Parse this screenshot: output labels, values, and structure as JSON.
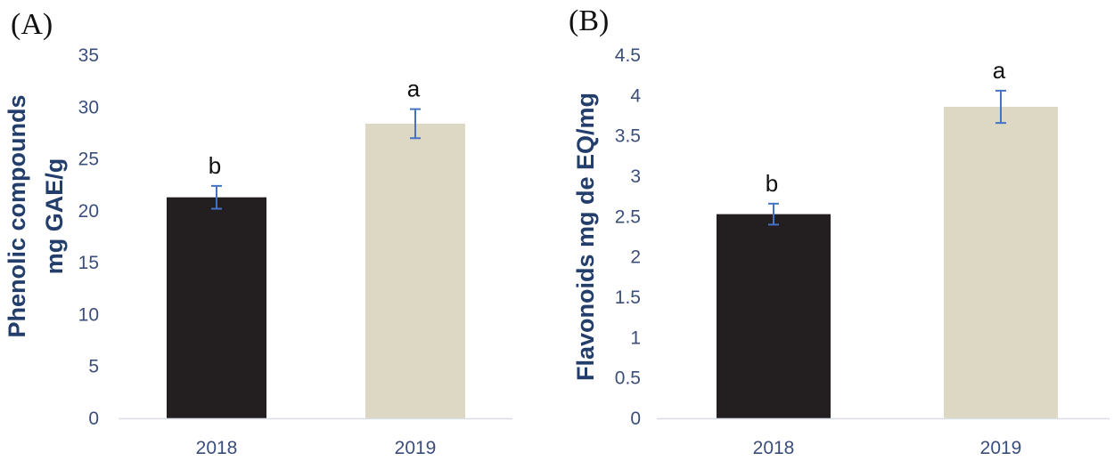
{
  "chart_data": [
    {
      "type": "bar",
      "panel_label": "(A)",
      "categories": [
        "2018",
        "2019"
      ],
      "values": [
        21.3,
        28.4
      ],
      "errors": [
        1.1,
        1.4
      ],
      "significance": [
        "b",
        "a"
      ],
      "ylabel_lines": [
        "Phenolic compounds",
        "mg GAE/g"
      ],
      "xlabel": "",
      "ylim": [
        0,
        35
      ],
      "yticks": [
        0,
        5,
        10,
        15,
        20,
        25,
        30,
        35
      ],
      "ytick_labels": [
        "0",
        "5",
        "10",
        "15",
        "20",
        "25",
        "30",
        "35"
      ],
      "bar_colors": [
        "#231f20",
        "#ddd8c4"
      ],
      "error_color": "#4472c4",
      "grid": false
    },
    {
      "type": "bar",
      "panel_label": "(B)",
      "categories": [
        "2018",
        "2019"
      ],
      "values": [
        2.53,
        3.86
      ],
      "errors": [
        0.13,
        0.2
      ],
      "significance": [
        "b",
        "a"
      ],
      "ylabel_lines": [
        "Flavonoids mg de EQ/mg"
      ],
      "xlabel": "",
      "ylim": [
        0,
        4.5
      ],
      "yticks": [
        0,
        0.5,
        1,
        1.5,
        2,
        2.5,
        3,
        3.5,
        4,
        4.5
      ],
      "ytick_labels": [
        "0",
        "0.5",
        "1",
        "1.5",
        "2",
        "2.5",
        "3",
        "3.5",
        "4",
        "4.5"
      ],
      "bar_colors": [
        "#231f20",
        "#ddd8c4"
      ],
      "error_color": "#4472c4",
      "grid": false
    }
  ]
}
